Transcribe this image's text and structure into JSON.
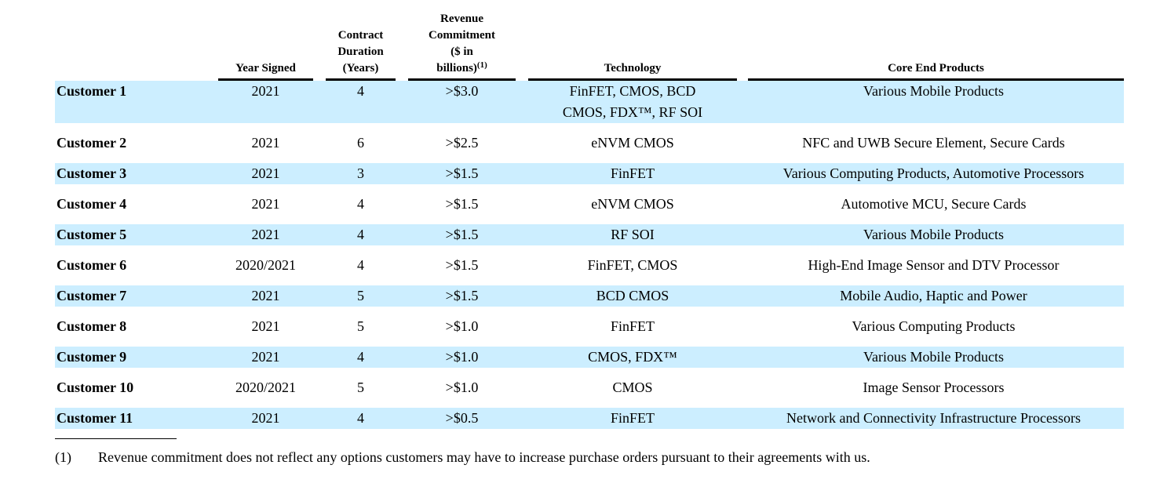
{
  "colors": {
    "row_highlight": "#cceeff",
    "text": "#000000",
    "rule": "#000000"
  },
  "table": {
    "columns": {
      "customer": {
        "label": ""
      },
      "year_signed": {
        "label": "Year Signed"
      },
      "contract_duration": {
        "line1": "Contract",
        "line2": "Duration",
        "line3": "(Years)"
      },
      "revenue_commitment": {
        "line1": "Revenue",
        "line2": "Commitment",
        "line3": "($ in",
        "line4": "billions)",
        "footnote_ref": "(1)"
      },
      "technology": {
        "label": "Technology"
      },
      "core_end_products": {
        "label": "Core End Products"
      }
    },
    "rows": [
      {
        "customer": "Customer 1",
        "year_signed": "2021",
        "duration": "4",
        "revenue": ">$3.0",
        "technology": "FinFET, CMOS, BCD CMOS, FDX™, RF SOI",
        "products": "Various Mobile Products"
      },
      {
        "customer": "Customer 2",
        "year_signed": "2021",
        "duration": "6",
        "revenue": ">$2.5",
        "technology": "eNVM CMOS",
        "products": "NFC and UWB Secure Element, Secure Cards"
      },
      {
        "customer": "Customer 3",
        "year_signed": "2021",
        "duration": "3",
        "revenue": ">$1.5",
        "technology": "FinFET",
        "products": "Various Computing Products, Automotive Processors"
      },
      {
        "customer": "Customer 4",
        "year_signed": "2021",
        "duration": "4",
        "revenue": ">$1.5",
        "technology": "eNVM CMOS",
        "products": "Automotive MCU, Secure Cards"
      },
      {
        "customer": "Customer 5",
        "year_signed": "2021",
        "duration": "4",
        "revenue": ">$1.5",
        "technology": "RF SOI",
        "products": "Various Mobile Products"
      },
      {
        "customer": "Customer 6",
        "year_signed": "2020/2021",
        "duration": "4",
        "revenue": ">$1.5",
        "technology": "FinFET, CMOS",
        "products": "High-End Image Sensor and DTV Processor"
      },
      {
        "customer": "Customer 7",
        "year_signed": "2021",
        "duration": "5",
        "revenue": ">$1.5",
        "technology": "BCD CMOS",
        "products": "Mobile Audio, Haptic and Power"
      },
      {
        "customer": "Customer 8",
        "year_signed": "2021",
        "duration": "5",
        "revenue": ">$1.0",
        "technology": "FinFET",
        "products": "Various Computing Products"
      },
      {
        "customer": "Customer 9",
        "year_signed": "2021",
        "duration": "4",
        "revenue": ">$1.0",
        "technology": "CMOS, FDX™",
        "products": "Various Mobile Products"
      },
      {
        "customer": "Customer 10",
        "year_signed": "2020/2021",
        "duration": "5",
        "revenue": ">$1.0",
        "technology": "CMOS",
        "products": "Image Sensor Processors"
      },
      {
        "customer": "Customer 11",
        "year_signed": "2021",
        "duration": "4",
        "revenue": ">$0.5",
        "technology": "FinFET",
        "products": "Network and Connectivity Infrastructure Processors"
      }
    ]
  },
  "footnote": {
    "ref": "(1)",
    "text": "Revenue commitment does not reflect any options customers may have to increase purchase orders pursuant to their agreements with us."
  }
}
